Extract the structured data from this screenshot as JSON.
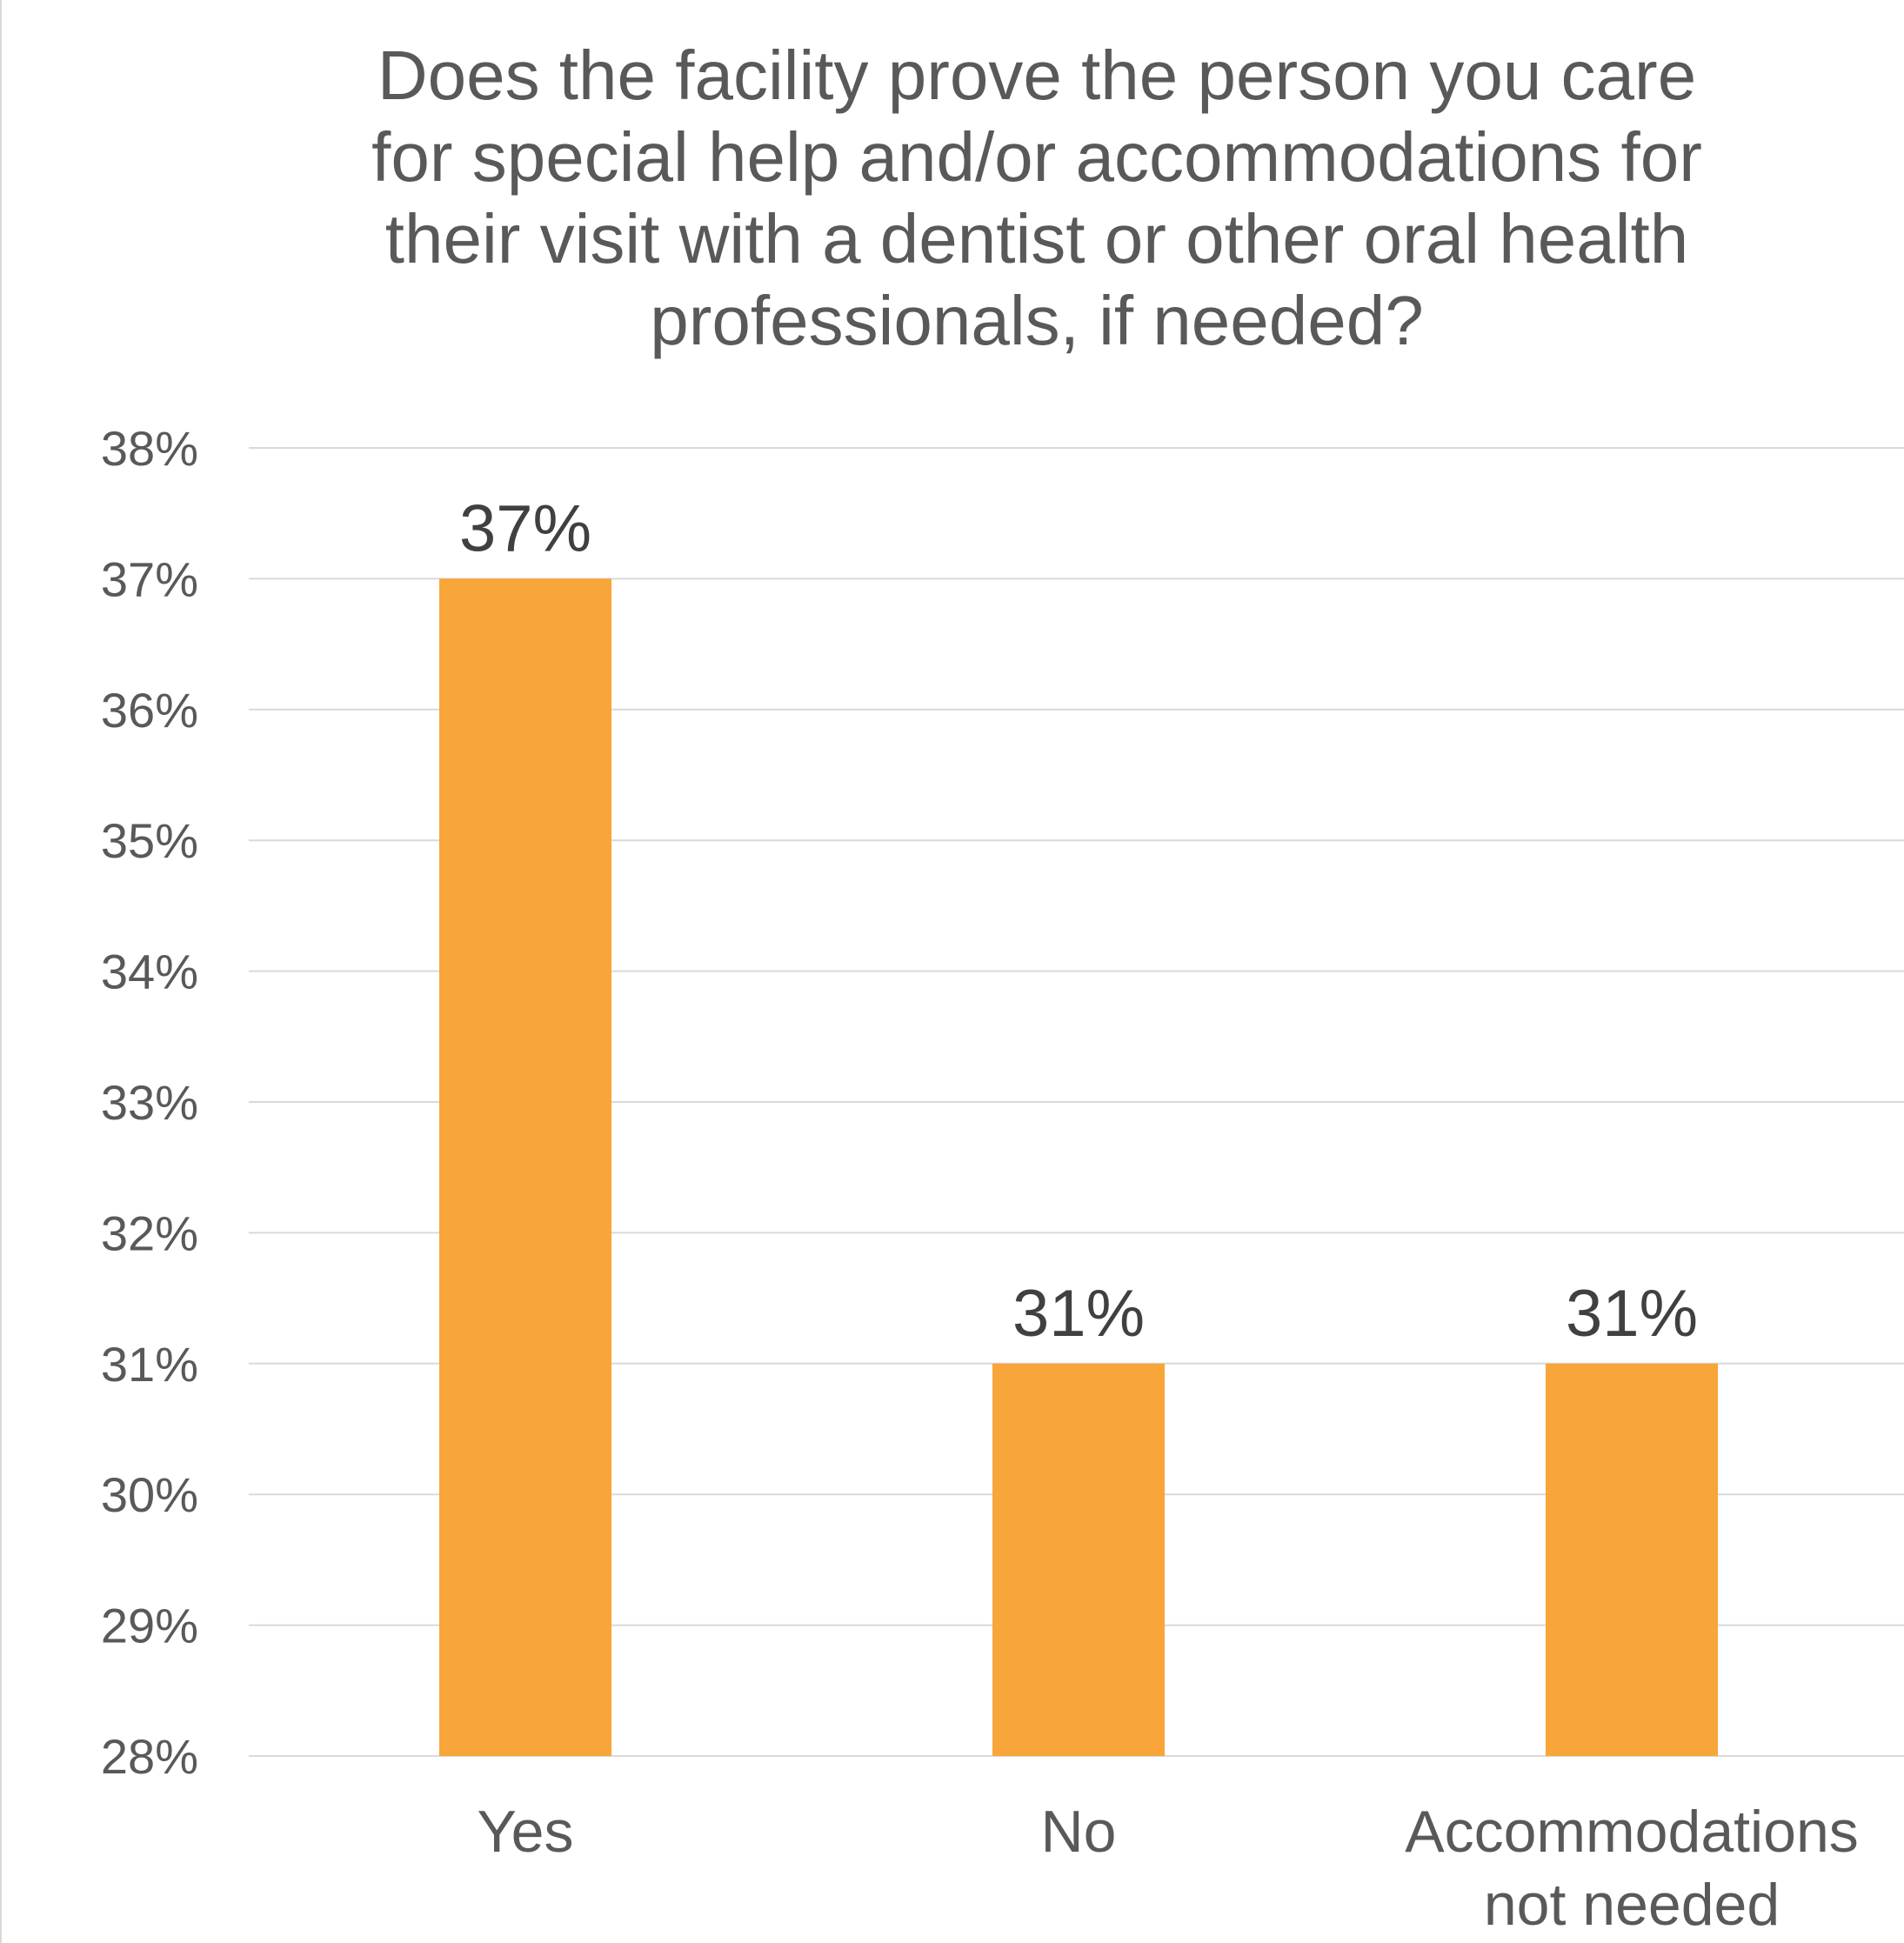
{
  "chart_data": {
    "type": "bar",
    "title": "Does the facility prove the person you care\nfor special help and/or accommodations for\ntheir visit with a dentist or other oral health\nprofessionals, if needed?",
    "categories": [
      "Yes",
      "No",
      "Accommodations not needed"
    ],
    "category_lines": [
      [
        "Yes"
      ],
      [
        "No"
      ],
      [
        "Accommodations",
        "not needed"
      ]
    ],
    "values": [
      37,
      31,
      31
    ],
    "data_labels": [
      "37%",
      "31%",
      "31%"
    ],
    "ylim": [
      28,
      38
    ],
    "yticks": [
      28,
      29,
      30,
      31,
      32,
      33,
      34,
      35,
      36,
      37,
      38
    ],
    "ytick_labels": [
      "28%",
      "29%",
      "30%",
      "31%",
      "32%",
      "33%",
      "34%",
      "35%",
      "36%",
      "37%",
      "38%"
    ],
    "grid": true,
    "legend": "none",
    "bar_color": "#f8a53a",
    "grid_color": "#d9d9d9"
  }
}
